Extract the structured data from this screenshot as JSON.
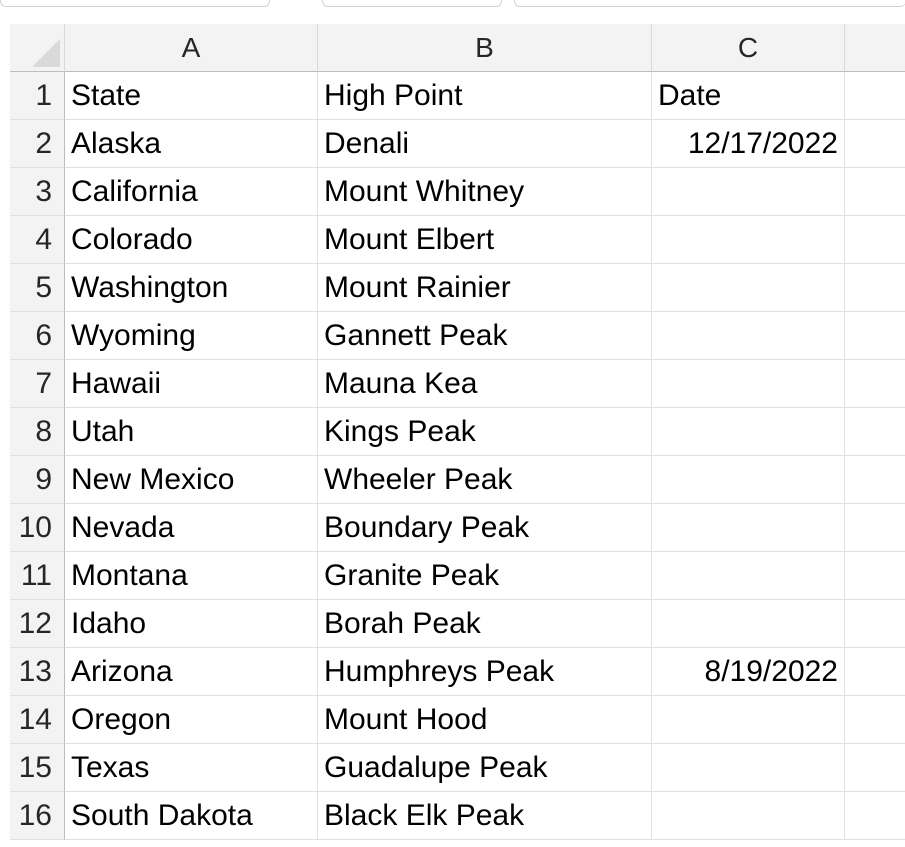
{
  "columns": [
    "A",
    "B",
    "C"
  ],
  "rows": [
    {
      "num": "1",
      "a": "State",
      "b": "High Point",
      "c": "Date"
    },
    {
      "num": "2",
      "a": "Alaska",
      "b": "Denali",
      "c": "12/17/2022"
    },
    {
      "num": "3",
      "a": "California",
      "b": "Mount Whitney",
      "c": ""
    },
    {
      "num": "4",
      "a": "Colorado",
      "b": "Mount Elbert",
      "c": ""
    },
    {
      "num": "5",
      "a": "Washington",
      "b": "Mount Rainier",
      "c": ""
    },
    {
      "num": "6",
      "a": "Wyoming",
      "b": "Gannett Peak",
      "c": ""
    },
    {
      "num": "7",
      "a": "Hawaii",
      "b": "Mauna Kea",
      "c": ""
    },
    {
      "num": "8",
      "a": "Utah",
      "b": "Kings Peak",
      "c": ""
    },
    {
      "num": "9",
      "a": "New Mexico",
      "b": "Wheeler Peak",
      "c": ""
    },
    {
      "num": "10",
      "a": "Nevada",
      "b": "Boundary Peak",
      "c": ""
    },
    {
      "num": "11",
      "a": "Montana",
      "b": "Granite Peak",
      "c": ""
    },
    {
      "num": "12",
      "a": "Idaho",
      "b": "Borah Peak",
      "c": ""
    },
    {
      "num": "13",
      "a": "Arizona",
      "b": "Humphreys Peak",
      "c": "8/19/2022"
    },
    {
      "num": "14",
      "a": "Oregon",
      "b": "Mount Hood",
      "c": ""
    },
    {
      "num": "15",
      "a": "Texas",
      "b": "Guadalupe Peak",
      "c": ""
    },
    {
      "num": "16",
      "a": "South Dakota",
      "b": "Black Elk Peak",
      "c": ""
    }
  ]
}
